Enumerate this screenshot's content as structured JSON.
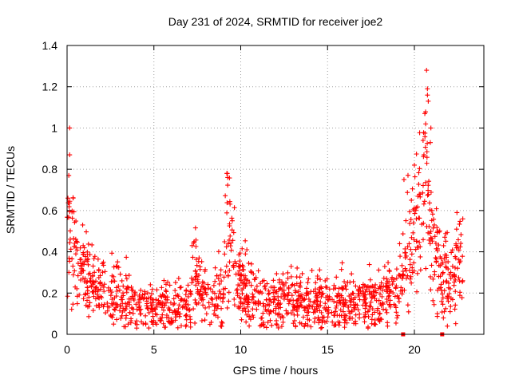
{
  "chart_data": {
    "type": "scatter",
    "title": "Day 231 of 2024, SRMTID for receiver joe2",
    "xlabel": "GPS time / hours",
    "ylabel": "SRMTID / TECUs",
    "xlim": [
      0,
      24
    ],
    "ylim": [
      0,
      1.4
    ],
    "x_ticks": [
      0,
      5,
      10,
      15,
      20
    ],
    "x_tick_labels": [
      "0",
      "5",
      "10",
      "15",
      "20"
    ],
    "y_ticks": [
      0,
      0.2,
      0.4,
      0.6,
      0.8,
      1.0,
      1.2,
      1.4
    ],
    "y_tick_labels": [
      "0",
      "0.2",
      "0.4",
      "0.6",
      "0.8",
      "1",
      "1.2",
      "1.4"
    ],
    "grid": true,
    "marker": "+",
    "color": "#ff0000",
    "series": [
      {
        "name": "joe2",
        "envelope_hours": [
          0,
          0.25,
          0.5,
          1,
          1.5,
          2,
          3,
          4,
          5,
          6,
          7,
          7.3,
          8,
          9,
          9.2,
          9.5,
          10,
          11,
          12,
          13,
          14,
          15,
          16,
          17,
          18,
          19,
          19.5,
          20,
          20.5,
          20.7,
          21,
          21.5,
          22,
          22.5,
          22.8
        ],
        "envelope_mean_tecu": [
          0.55,
          0.42,
          0.35,
          0.3,
          0.25,
          0.22,
          0.18,
          0.15,
          0.13,
          0.13,
          0.16,
          0.3,
          0.17,
          0.2,
          0.55,
          0.35,
          0.25,
          0.17,
          0.15,
          0.17,
          0.16,
          0.15,
          0.17,
          0.16,
          0.18,
          0.18,
          0.4,
          0.5,
          0.7,
          0.8,
          0.45,
          0.3,
          0.25,
          0.3,
          0.35
        ],
        "outliers": [
          {
            "x": 0.15,
            "y": 1.0
          },
          {
            "x": 0.15,
            "y": 0.87
          },
          {
            "x": 0.1,
            "y": 0.77
          },
          {
            "x": 0.05,
            "y": 0.66
          },
          {
            "x": 9.2,
            "y": 0.78
          },
          {
            "x": 9.25,
            "y": 0.76
          },
          {
            "x": 20.7,
            "y": 1.28
          },
          {
            "x": 20.75,
            "y": 1.19
          },
          {
            "x": 20.8,
            "y": 1.13
          },
          {
            "x": 20.6,
            "y": 1.07
          },
          {
            "x": 20.65,
            "y": 1.02
          },
          {
            "x": 20.95,
            "y": 1.0
          },
          {
            "x": 20.5,
            "y": 0.94
          },
          {
            "x": 20.55,
            "y": 0.87
          },
          {
            "x": 20.0,
            "y": 0.82
          },
          {
            "x": 19.4,
            "y": 0.75
          },
          {
            "x": 22.45,
            "y": 0.59
          },
          {
            "x": 21.0,
            "y": 0.6
          },
          {
            "x": 21.9,
            "y": 0.04
          },
          {
            "x": 7.2,
            "y": 0.43
          }
        ],
        "zero_markers_hours": [
          19.35,
          21.6
        ]
      }
    ]
  }
}
